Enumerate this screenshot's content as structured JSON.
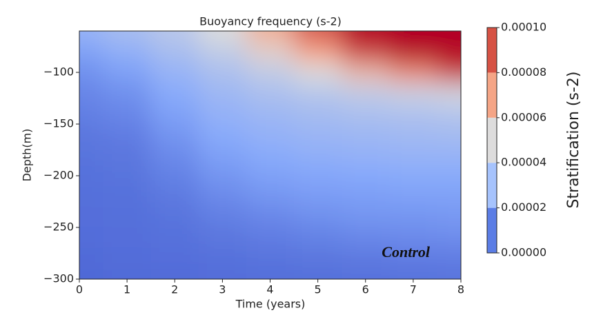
{
  "chart_data": {
    "type": "contourf",
    "title": "Buoyancy frequency (s-2)",
    "xlabel": "Time (years)",
    "ylabel": "Depth(m)",
    "colorbar_label": "Stratification (s-2)",
    "annotation": "Control",
    "x": [
      0,
      1,
      2,
      3,
      4,
      5,
      6,
      7,
      8
    ],
    "y": [
      -60,
      -80,
      -100,
      -120,
      -140,
      -160,
      -180,
      -200,
      -220,
      -240,
      -260,
      -280,
      -300
    ],
    "z": [
      [
        3e-05,
        3.5e-05,
        4e-05,
        5e-05,
        7e-05,
        9e-05,
        0.00011,
        0.00011,
        0.00011
      ],
      [
        2.2e-05,
        2.8e-05,
        3.5e-05,
        4.2e-05,
        5.5e-05,
        7.5e-05,
        9.5e-05,
        0.000105,
        0.00011
      ],
      [
        1.6e-05,
        2.2e-05,
        3e-05,
        3.6e-05,
        4.2e-05,
        5e-05,
        6.5e-05,
        8e-05,
        9.5e-05
      ],
      [
        1.2e-05,
        1.6e-05,
        2.6e-05,
        3.2e-05,
        3.6e-05,
        3.9e-05,
        4.2e-05,
        4.5e-05,
        4.8e-05
      ],
      [
        1e-05,
        1.3e-05,
        2.2e-05,
        2.9e-05,
        3.2e-05,
        3.4e-05,
        3.6e-05,
        3.7e-05,
        3.8e-05
      ],
      [
        7e-06,
        9e-06,
        1.8e-05,
        2.6e-05,
        2.9e-05,
        3.1e-05,
        3.2e-05,
        3.3e-05,
        3.4e-05
      ],
      [
        6e-06,
        7e-06,
        1.4e-05,
        2.2e-05,
        2.6e-05,
        2.8e-05,
        2.9e-05,
        3e-05,
        3e-05
      ],
      [
        5e-06,
        6e-06,
        1.1e-05,
        1.8e-05,
        2.2e-05,
        2.4e-05,
        2.5e-05,
        2.6e-05,
        2.6e-05
      ],
      [
        4.5e-06,
        5e-06,
        8e-06,
        1.4e-05,
        1.8e-05,
        2e-05,
        2.1e-05,
        2.2e-05,
        2.2e-05
      ],
      [
        4e-06,
        4.5e-06,
        6e-06,
        1e-05,
        1.3e-05,
        1.6e-05,
        1.8e-05,
        1.8e-05,
        1.9e-05
      ],
      [
        3.5e-06,
        4e-06,
        5e-06,
        7e-06,
        9e-06,
        1.1e-05,
        1.3e-05,
        1.4e-05,
        1.5e-05
      ],
      [
        3e-06,
        3.5e-06,
        4e-06,
        5e-06,
        6e-06,
        7e-06,
        8e-06,
        9e-06,
        9e-06
      ],
      [
        2e-06,
        3e-06,
        3e-06,
        3.5e-06,
        4e-06,
        4.5e-06,
        5e-06,
        5.5e-06,
        6e-06
      ]
    ],
    "xlim": [
      0,
      8
    ],
    "ylim": [
      -300,
      -60
    ],
    "xticks": [
      0,
      1,
      2,
      3,
      4,
      5,
      6,
      7,
      8
    ],
    "yticks": [
      {
        "value": -300,
        "label": "−300"
      },
      {
        "value": -250,
        "label": "−250"
      },
      {
        "value": -200,
        "label": "−200"
      },
      {
        "value": -150,
        "label": "−150"
      },
      {
        "value": -100,
        "label": "−100"
      }
    ],
    "zlim": [
      0,
      0.0001
    ],
    "colormap": [
      "#4a63d3",
      "#86a9fc",
      "#dcdcdc",
      "#f4a283",
      "#c0282f"
    ],
    "over_color": "#b40426",
    "levels": [
      {
        "value": 0,
        "label": "0.00000"
      },
      {
        "value": 2e-05,
        "label": "0.00002"
      },
      {
        "value": 4e-05,
        "label": "0.00004"
      },
      {
        "value": 6e-05,
        "label": "0.00006"
      },
      {
        "value": 8e-05,
        "label": "0.00008"
      },
      {
        "value": 0.0001,
        "label": "0.00010"
      }
    ],
    "level_colors": [
      "#5b7de5",
      "#a6c3fd",
      "#dddcdc",
      "#f5a586",
      "#d65244"
    ]
  }
}
